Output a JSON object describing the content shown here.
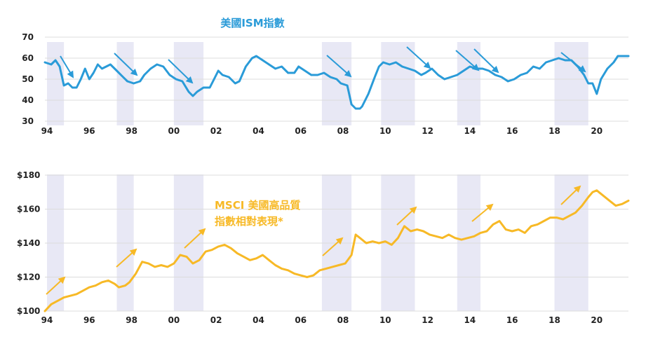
{
  "chart_data": [
    {
      "type": "line",
      "title": "美國ISM指數",
      "ylim": [
        30,
        70
      ],
      "yticks": [
        30,
        40,
        50,
        60,
        70
      ],
      "xlim": [
        1994,
        2021.6
      ],
      "xticks": [
        1994,
        1996,
        1998,
        2000,
        2002,
        2004,
        2006,
        2008,
        2010,
        2012,
        2014,
        2016,
        2018,
        2020
      ],
      "xtick_labels": [
        "94",
        "96",
        "98",
        "00",
        "02",
        "04",
        "06",
        "08",
        "10",
        "12",
        "14",
        "16",
        "18",
        "20"
      ],
      "grid": true,
      "color": "#2a9bd8",
      "shaded_periods": [
        [
          1994.1,
          1994.9
        ],
        [
          1997.4,
          1998.2
        ],
        [
          2000.1,
          2001.5
        ],
        [
          2007.1,
          2008.5
        ],
        [
          2009.9,
          2011.5
        ],
        [
          2013.5,
          2014.6
        ],
        [
          2018.1,
          2019.7
        ]
      ],
      "series": [
        {
          "x": [
            1994.0,
            1994.3,
            1994.5,
            1994.7,
            1994.9,
            1995.1,
            1995.3,
            1995.5,
            1995.7,
            1995.9,
            1996.1,
            1996.3,
            1996.5,
            1996.7,
            1996.9,
            1997.1,
            1997.4,
            1997.7,
            1997.9,
            1998.2,
            1998.5,
            1998.7,
            1999.0,
            1999.3,
            1999.6,
            1999.9,
            2000.2,
            2000.5,
            2000.8,
            2001.0,
            2001.2,
            2001.5,
            2001.8,
            2002.0,
            2002.2,
            2002.4,
            2002.7,
            2003.0,
            2003.2,
            2003.5,
            2003.8,
            2004.0,
            2004.3,
            2004.6,
            2004.9,
            2005.2,
            2005.5,
            2005.8,
            2006.0,
            2006.3,
            2006.6,
            2006.9,
            2007.2,
            2007.5,
            2007.8,
            2008.0,
            2008.3,
            2008.5,
            2008.7,
            2008.9,
            2009.0,
            2009.3,
            2009.6,
            2009.8,
            2010.0,
            2010.3,
            2010.6,
            2010.9,
            2011.2,
            2011.5,
            2011.8,
            2012.0,
            2012.3,
            2012.6,
            2012.9,
            2013.2,
            2013.5,
            2013.8,
            2014.1,
            2014.4,
            2014.7,
            2015.0,
            2015.3,
            2015.6,
            2015.9,
            2016.2,
            2016.5,
            2016.8,
            2017.1,
            2017.4,
            2017.7,
            2018.0,
            2018.3,
            2018.6,
            2018.9,
            2019.2,
            2019.5,
            2019.7,
            2019.9,
            2020.1,
            2020.3,
            2020.6,
            2020.9,
            2021.1,
            2021.3,
            2021.6
          ],
          "values": [
            58,
            57,
            59,
            56,
            47,
            48,
            46,
            46,
            50,
            55,
            50,
            53,
            57,
            55,
            56,
            57,
            54,
            51,
            49,
            48,
            49,
            52,
            55,
            57,
            56,
            52,
            50,
            49,
            44,
            42,
            44,
            46,
            46,
            50,
            54,
            52,
            51,
            48,
            49,
            56,
            60,
            61,
            59,
            57,
            55,
            56,
            53,
            53,
            56,
            54,
            52,
            52,
            53,
            51,
            50,
            48,
            47,
            38,
            36,
            36,
            37,
            43,
            51,
            56,
            58,
            57,
            58,
            56,
            55,
            54,
            52,
            53,
            55,
            52,
            50,
            51,
            52,
            54,
            56,
            55,
            55,
            54,
            52,
            51,
            49,
            50,
            52,
            53,
            56,
            55,
            58,
            59,
            60,
            59,
            59,
            56,
            52,
            48,
            48,
            43,
            50,
            55,
            58,
            61,
            61,
            61
          ]
        }
      ]
    },
    {
      "type": "line",
      "title": "MSCI 美國高品質 指數相對表現*",
      "ylim": [
        100,
        180
      ],
      "yticks": [
        100,
        120,
        140,
        160,
        180
      ],
      "ytick_labels": [
        "$100",
        "$120",
        "$140",
        "$160",
        "$180"
      ],
      "xlim": [
        1994,
        2021.6
      ],
      "xticks": [
        1994,
        1996,
        1998,
        2000,
        2002,
        2004,
        2006,
        2008,
        2010,
        2012,
        2014,
        2016,
        2018,
        2020
      ],
      "xtick_labels": [
        "94",
        "96",
        "98",
        "00",
        "02",
        "04",
        "06",
        "08",
        "10",
        "12",
        "14",
        "16",
        "18",
        "20"
      ],
      "grid": true,
      "color": "#f7b926",
      "shaded_periods": [
        [
          1994.1,
          1994.9
        ],
        [
          1997.4,
          1998.2
        ],
        [
          2000.1,
          2001.5
        ],
        [
          2007.1,
          2008.5
        ],
        [
          2009.9,
          2011.5
        ],
        [
          2013.5,
          2014.6
        ],
        [
          2018.1,
          2019.7
        ]
      ],
      "series": [
        {
          "x": [
            1994.0,
            1994.3,
            1994.6,
            1994.9,
            1995.2,
            1995.5,
            1995.8,
            1996.1,
            1996.4,
            1996.7,
            1997.0,
            1997.3,
            1997.5,
            1997.8,
            1998.0,
            1998.3,
            1998.6,
            1998.9,
            1999.2,
            1999.5,
            1999.8,
            2000.1,
            2000.4,
            2000.7,
            2001.0,
            2001.3,
            2001.6,
            2001.9,
            2002.2,
            2002.5,
            2002.8,
            2003.1,
            2003.4,
            2003.7,
            2004.0,
            2004.3,
            2004.6,
            2004.9,
            2005.2,
            2005.5,
            2005.8,
            2006.1,
            2006.4,
            2006.7,
            2007.0,
            2007.3,
            2007.6,
            2007.9,
            2008.2,
            2008.5,
            2008.7,
            2008.9,
            2009.2,
            2009.5,
            2009.8,
            2010.1,
            2010.4,
            2010.7,
            2011.0,
            2011.3,
            2011.6,
            2011.9,
            2012.2,
            2012.5,
            2012.8,
            2013.1,
            2013.4,
            2013.7,
            2014.0,
            2014.3,
            2014.6,
            2014.9,
            2015.2,
            2015.5,
            2015.8,
            2016.1,
            2016.4,
            2016.7,
            2017.0,
            2017.3,
            2017.6,
            2017.9,
            2018.2,
            2018.5,
            2018.8,
            2019.1,
            2019.4,
            2019.7,
            2019.9,
            2020.1,
            2020.4,
            2020.7,
            2021.0,
            2021.3,
            2021.6
          ],
          "values": [
            100,
            104,
            106,
            108,
            109,
            110,
            112,
            114,
            115,
            117,
            118,
            116,
            114,
            115,
            117,
            122,
            129,
            128,
            126,
            127,
            126,
            128,
            133,
            132,
            128,
            130,
            135,
            136,
            138,
            139,
            137,
            134,
            132,
            130,
            131,
            133,
            130,
            127,
            125,
            124,
            122,
            121,
            120,
            121,
            124,
            125,
            126,
            127,
            128,
            133,
            145,
            143,
            140,
            141,
            140,
            141,
            139,
            143,
            150,
            147,
            148,
            147,
            145,
            144,
            143,
            145,
            143,
            142,
            143,
            144,
            146,
            147,
            151,
            153,
            148,
            147,
            148,
            146,
            150,
            151,
            153,
            155,
            155,
            154,
            156,
            158,
            162,
            167,
            170,
            171,
            168,
            165,
            162,
            163,
            165
          ]
        }
      ]
    }
  ]
}
